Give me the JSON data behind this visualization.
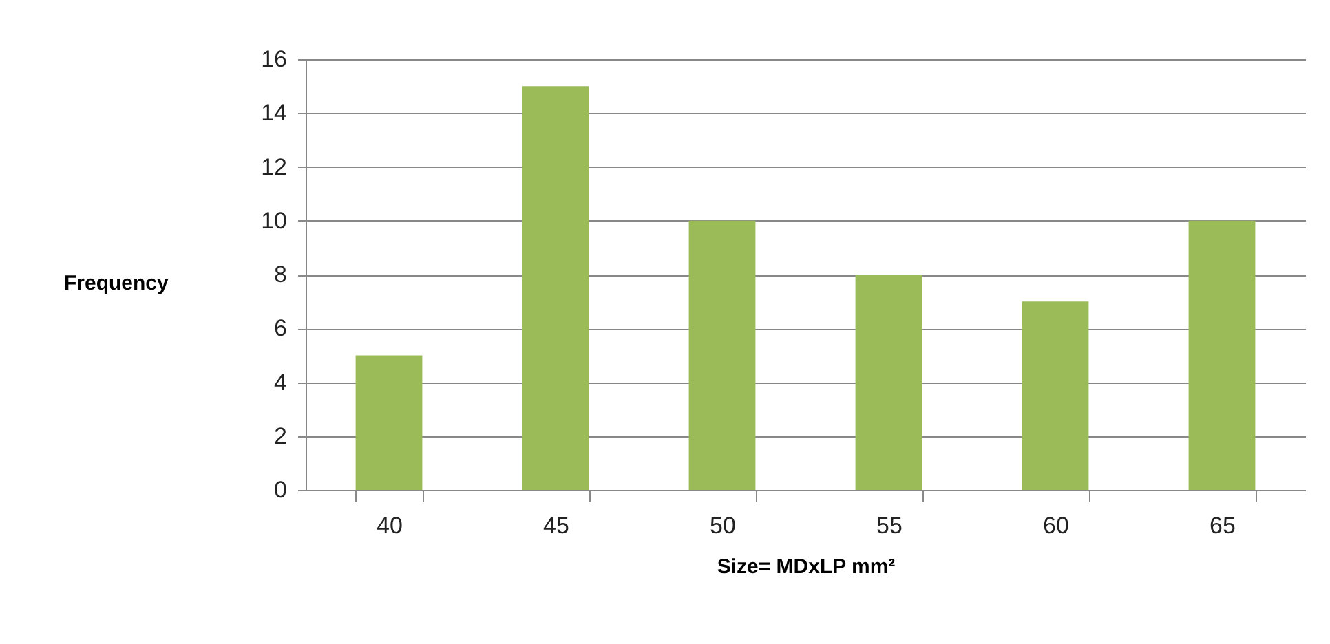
{
  "chart_data": {
    "type": "bar",
    "xlabel": "Size= MDxLP mm²",
    "ylabel": "Frequency",
    "categories": [
      "40",
      "45",
      "50",
      "55",
      "60",
      "65"
    ],
    "values": [
      5,
      15,
      10,
      8,
      7,
      10
    ],
    "color": "#9bbb59",
    "ylim": [
      0,
      16
    ],
    "yticks": [
      0,
      2,
      4,
      6,
      8,
      10,
      12,
      14,
      16
    ],
    "grid": "y"
  }
}
